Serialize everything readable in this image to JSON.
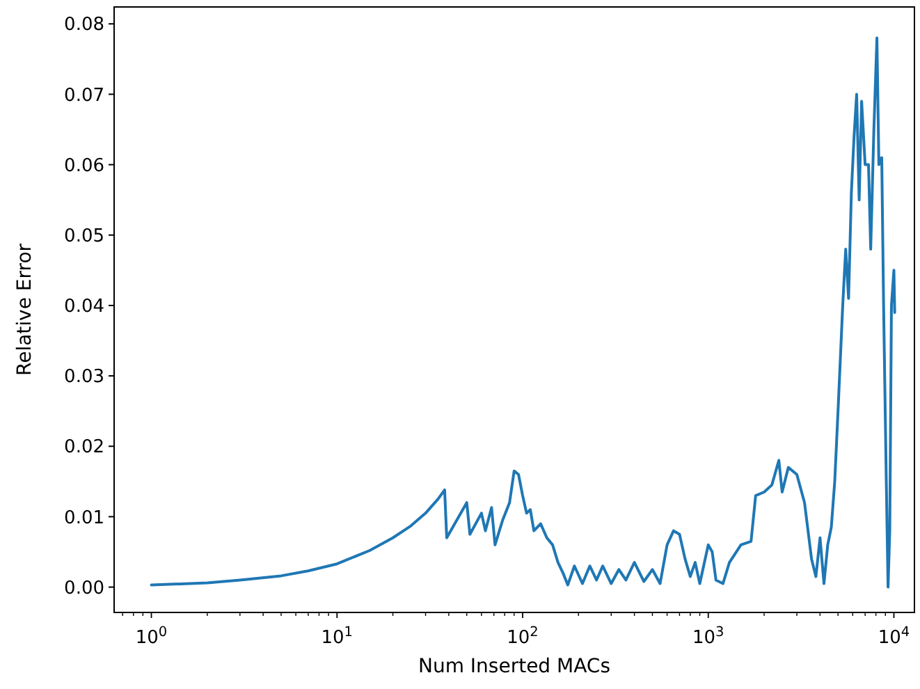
{
  "chart_data": {
    "type": "line",
    "xlabel": "Num Inserted MACs",
    "ylabel": "Relative Error",
    "log": "x",
    "xlim": [
      0.63,
      12900
    ],
    "ylim": [
      -0.0036,
      0.0824
    ],
    "xticks": [
      {
        "value": 0.7,
        "label": null
      },
      {
        "value": 0.8,
        "label": null
      },
      {
        "value": 0.9,
        "label": null
      },
      {
        "value": 1,
        "label": "10$^{0}$"
      },
      {
        "value": 2,
        "label": null
      },
      {
        "value": 3,
        "label": null
      },
      {
        "value": 4,
        "label": null
      },
      {
        "value": 5,
        "label": null
      },
      {
        "value": 6,
        "label": null
      },
      {
        "value": 7,
        "label": null
      },
      {
        "value": 8,
        "label": null
      },
      {
        "value": 9,
        "label": null
      },
      {
        "value": 10,
        "label": "10$^{1}$"
      },
      {
        "value": 20,
        "label": null
      },
      {
        "value": 30,
        "label": null
      },
      {
        "value": 40,
        "label": null
      },
      {
        "value": 50,
        "label": null
      },
      {
        "value": 60,
        "label": null
      },
      {
        "value": 70,
        "label": null
      },
      {
        "value": 80,
        "label": null
      },
      {
        "value": 90,
        "label": null
      },
      {
        "value": 100,
        "label": "10$^{2}$"
      },
      {
        "value": 200,
        "label": null
      },
      {
        "value": 300,
        "label": null
      },
      {
        "value": 400,
        "label": null
      },
      {
        "value": 500,
        "label": null
      },
      {
        "value": 600,
        "label": null
      },
      {
        "value": 700,
        "label": null
      },
      {
        "value": 800,
        "label": null
      },
      {
        "value": 900,
        "label": null
      },
      {
        "value": 1000,
        "label": "10$^{3}$"
      },
      {
        "value": 2000,
        "label": null
      },
      {
        "value": 3000,
        "label": null
      },
      {
        "value": 4000,
        "label": null
      },
      {
        "value": 5000,
        "label": null
      },
      {
        "value": 6000,
        "label": null
      },
      {
        "value": 7000,
        "label": null
      },
      {
        "value": 8000,
        "label": null
      },
      {
        "value": 9000,
        "label": null
      },
      {
        "value": 10000,
        "label": "10$^{4}$"
      }
    ],
    "yticks": [
      {
        "value": 0,
        "label": "0.00"
      },
      {
        "value": 0.01,
        "label": "0.01"
      },
      {
        "value": 0.02,
        "label": "0.02"
      },
      {
        "value": 0.03,
        "label": "0.03"
      },
      {
        "value": 0.04,
        "label": "0.04"
      },
      {
        "value": 0.05,
        "label": "0.05"
      },
      {
        "value": 0.06,
        "label": "0.06"
      },
      {
        "value": 0.07,
        "label": "0.07"
      },
      {
        "value": 0.08,
        "label": "0.08"
      }
    ],
    "grid": false,
    "marker": "none",
    "line_style": "solid",
    "series": [
      {
        "color": "#1f77b4",
        "x": [
          1,
          2,
          3,
          5,
          7,
          10,
          15,
          20,
          25,
          30,
          35,
          38,
          39,
          50,
          52,
          60,
          63,
          68,
          71,
          78,
          85,
          90,
          95,
          100,
          105,
          110,
          115,
          125,
          135,
          145,
          155,
          165,
          175,
          190,
          210,
          230,
          250,
          270,
          300,
          330,
          360,
          400,
          450,
          500,
          550,
          600,
          650,
          700,
          750,
          800,
          850,
          900,
          1000,
          1050,
          1100,
          1200,
          1300,
          1500,
          1700,
          1800,
          2000,
          2200,
          2400,
          2500,
          2700,
          3000,
          3300,
          3600,
          3800,
          4000,
          4200,
          4400,
          4600,
          4800,
          5000,
          5300,
          5500,
          5700,
          5900,
          6100,
          6300,
          6500,
          6700,
          7000,
          7300,
          7500,
          7800,
          8100,
          8300,
          8600,
          8800,
          9100,
          9300,
          9500,
          9700,
          10000,
          10100
        ],
        "values": [
          0.0003,
          0.0006,
          0.001,
          0.0016,
          0.0023,
          0.0033,
          0.0052,
          0.007,
          0.0087,
          0.0105,
          0.0125,
          0.0138,
          0.007,
          0.012,
          0.0075,
          0.0105,
          0.008,
          0.0113,
          0.006,
          0.0095,
          0.012,
          0.0165,
          0.016,
          0.013,
          0.0105,
          0.011,
          0.008,
          0.009,
          0.007,
          0.006,
          0.0035,
          0.002,
          0.0003,
          0.003,
          0.0005,
          0.003,
          0.001,
          0.003,
          0.0005,
          0.0025,
          0.001,
          0.0035,
          0.0008,
          0.0025,
          0.0005,
          0.006,
          0.008,
          0.0075,
          0.004,
          0.0015,
          0.0035,
          0.0005,
          0.006,
          0.005,
          0.001,
          0.0005,
          0.0035,
          0.006,
          0.0065,
          0.013,
          0.0135,
          0.0145,
          0.018,
          0.0135,
          0.017,
          0.016,
          0.012,
          0.004,
          0.0015,
          0.007,
          0.0005,
          0.006,
          0.0085,
          0.015,
          0.025,
          0.04,
          0.048,
          0.041,
          0.056,
          0.064,
          0.07,
          0.055,
          0.069,
          0.06,
          0.06,
          0.048,
          0.065,
          0.078,
          0.06,
          0.061,
          0.04,
          0.015,
          0,
          0.008,
          0.04,
          0.045,
          0.039
        ]
      }
    ]
  }
}
